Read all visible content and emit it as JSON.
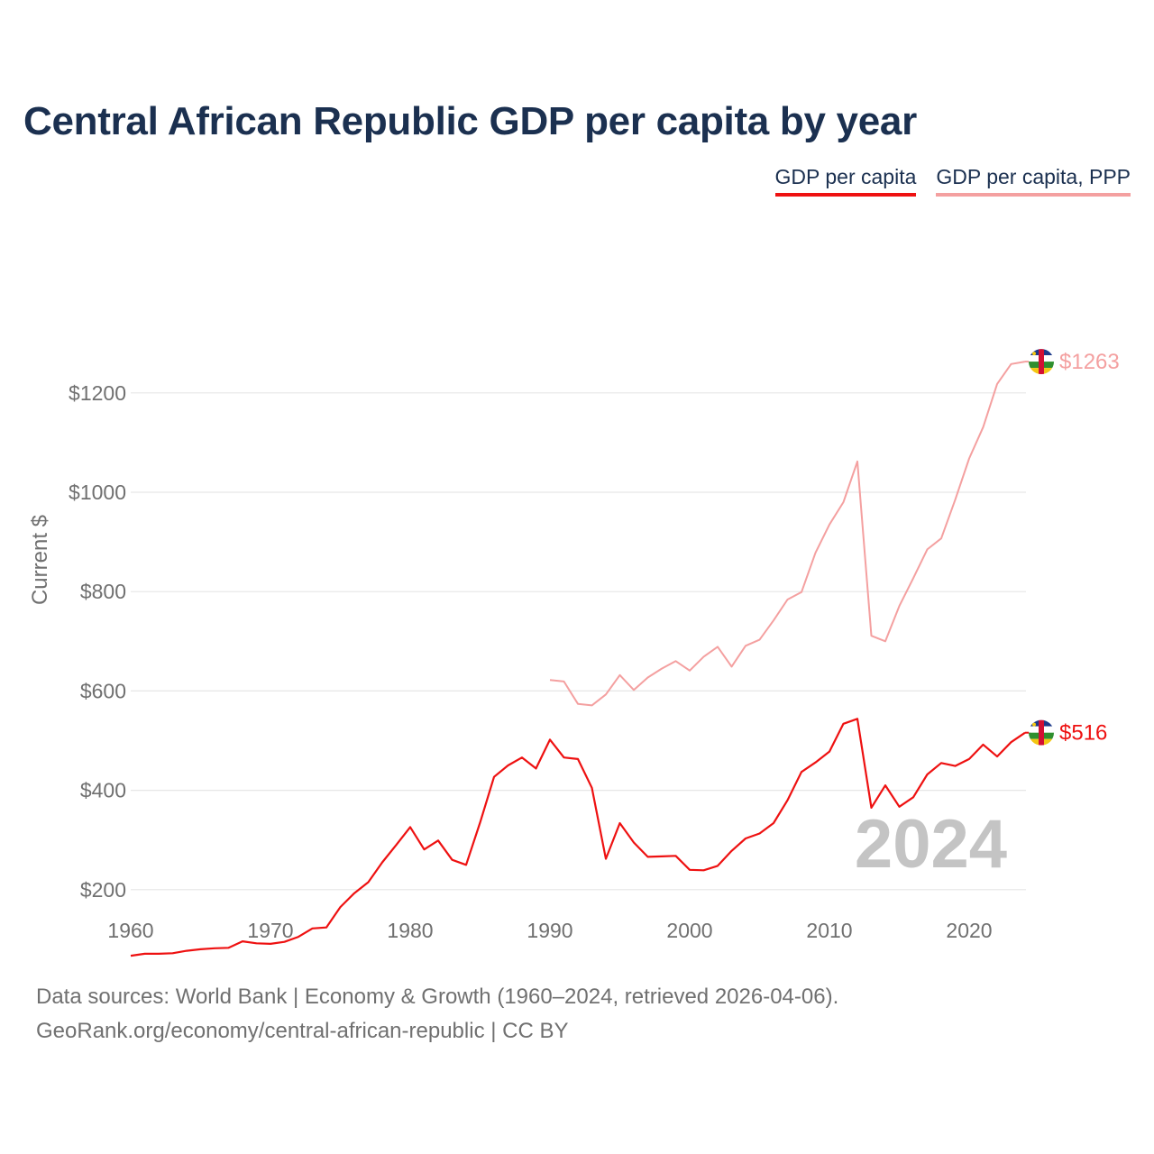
{
  "chart_data": {
    "type": "line",
    "title": "Central African Republic GDP per capita by year",
    "ylabel": "Current $",
    "xlim": [
      1960,
      2024
    ],
    "ylim": [
      0,
      1300
    ],
    "x_ticks": [
      1960,
      1970,
      1980,
      1990,
      2000,
      2010,
      2020
    ],
    "y_ticks": [
      200,
      400,
      600,
      800,
      1000,
      1200
    ],
    "x_tick_labels": [
      "1960",
      "1970",
      "1980",
      "1990",
      "2000",
      "2010",
      "2020"
    ],
    "y_tick_labels": [
      "$200",
      "$400",
      "$600",
      "$800",
      "$1000",
      "$1200"
    ],
    "year_watermark": "2024",
    "legend_position": "top-right",
    "series": [
      {
        "name": "GDP per capita",
        "color": "#ee1111",
        "start_year": 1960,
        "end_label": "$516",
        "values": [
          67,
          71,
          71,
          72,
          77,
          80,
          82,
          83,
          96,
          92,
          91,
          95,
          105,
          122,
          124,
          165,
          193,
          215,
          255,
          290,
          326,
          281,
          299,
          260,
          250,
          335,
          427,
          450,
          466,
          444,
          502,
          466,
          463,
          405,
          262,
          334,
          295,
          266,
          267,
          268,
          240,
          239,
          248,
          278,
          303,
          313,
          334,
          380,
          437,
          456,
          478,
          534,
          544,
          365,
          410,
          367,
          386,
          432,
          455,
          449,
          463,
          492,
          468,
          497,
          516
        ]
      },
      {
        "name": "GDP per capita, PPP",
        "color": "#f4a0a0",
        "start_year": 1990,
        "end_label": "$1263",
        "values": [
          622,
          619,
          574,
          571,
          593,
          632,
          602,
          627,
          645,
          660,
          641,
          669,
          689,
          649,
          691,
          703,
          742,
          784,
          799,
          878,
          935,
          980,
          1062,
          711,
          700,
          771,
          827,
          885,
          907,
          985,
          1068,
          1131,
          1218,
          1258,
          1263
        ]
      }
    ]
  },
  "legend": {
    "gdp_label": "GDP per capita",
    "ppp_label": "GDP per capita, PPP"
  },
  "footer": {
    "line1": "Data sources: World Bank | Economy & Growth (1960–2024, retrieved 2026-04-06).",
    "line2": "GeoRank.org/economy/central-african-republic | CC BY"
  },
  "colors": {
    "title": "#1b3050",
    "gdp": "#ee1111",
    "ppp": "#f4a0a0",
    "grid": "#e6e6e6",
    "axis_text": "#707070",
    "watermark": "#c4c4c4"
  }
}
